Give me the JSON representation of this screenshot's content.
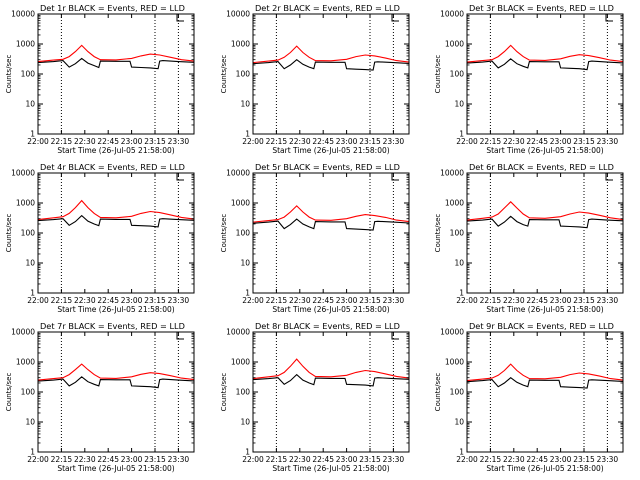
{
  "figure": {
    "background": "#ffffff",
    "events_color": "#000000",
    "lld_color": "#ff0000",
    "vline_times": [
      "22:15",
      "23:15",
      "23:30"
    ]
  },
  "chart_data": [
    {
      "type": "line",
      "title": "Det 1r BLACK = Events, RED = LLD",
      "xlabel": "",
      "ylabel": "Counts/sec",
      "x_ticks": [
        "22:00",
        "22:15",
        "22:30",
        "22:45",
        "23:00",
        "23:15",
        "23:30"
      ],
      "y_ticks": [
        "1",
        "10",
        "100",
        "1000",
        "10000"
      ],
      "yscale": "log",
      "ylim": [
        1,
        10000
      ],
      "xlim": [
        "22:00",
        "23:40"
      ],
      "series": [
        {
          "color": "#000000",
          "x": [
            "22:00",
            "22:10",
            "22:16",
            "22:20",
            "22:24",
            "22:28",
            "22:32",
            "22:36",
            "22:39",
            "22:40",
            "22:50",
            "22:59",
            "23:00",
            "23:06",
            "23:12",
            "23:17",
            "23:18",
            "23:20",
            "23:30",
            "23:40"
          ],
          "y": [
            240,
            260,
            280,
            170,
            220,
            330,
            230,
            190,
            165,
            270,
            265,
            265,
            170,
            165,
            160,
            150,
            270,
            280,
            260,
            245
          ]
        },
        {
          "color": "#ff0000",
          "x": [
            "22:00",
            "22:10",
            "22:16",
            "22:20",
            "22:24",
            "22:28",
            "22:32",
            "22:36",
            "22:40",
            "22:50",
            "23:00",
            "23:06",
            "23:12",
            "23:18",
            "23:25",
            "23:32",
            "23:40"
          ],
          "y": [
            260,
            290,
            310,
            380,
            560,
            900,
            560,
            380,
            300,
            295,
            330,
            400,
            460,
            430,
            360,
            300,
            270
          ]
        }
      ]
    },
    {
      "type": "line",
      "title": "Det 2r BLACK = Events, RED = LLD",
      "xlabel": "Start Time (26-Jul-05 21:58:00)",
      "ylabel": "Counts/sec",
      "x_ticks": [
        "22:00",
        "22:15",
        "22:30",
        "22:45",
        "23:00",
        "23:15",
        "23:30"
      ],
      "y_ticks": [
        "1",
        "10",
        "100",
        "1000",
        "10000"
      ],
      "yscale": "log",
      "ylim": [
        1,
        10000
      ],
      "xlim": [
        "22:00",
        "23:40"
      ],
      "series": [
        {
          "color": "#000000",
          "x": [
            "22:00",
            "22:10",
            "22:16",
            "22:20",
            "22:24",
            "22:28",
            "22:32",
            "22:36",
            "22:39",
            "22:40",
            "22:50",
            "22:59",
            "23:00",
            "23:06",
            "23:12",
            "23:17",
            "23:18",
            "23:20",
            "23:30",
            "23:40"
          ],
          "y": [
            220,
            240,
            260,
            150,
            200,
            300,
            210,
            170,
            150,
            250,
            245,
            245,
            150,
            145,
            140,
            135,
            250,
            255,
            240,
            225
          ]
        },
        {
          "color": "#ff0000",
          "x": [
            "22:00",
            "22:10",
            "22:16",
            "22:20",
            "22:24",
            "22:28",
            "22:32",
            "22:36",
            "22:40",
            "22:50",
            "23:00",
            "23:06",
            "23:12",
            "23:18",
            "23:25",
            "23:32",
            "23:40"
          ],
          "y": [
            240,
            270,
            290,
            360,
            520,
            850,
            520,
            360,
            280,
            275,
            310,
            380,
            430,
            400,
            340,
            280,
            250
          ]
        }
      ]
    },
    {
      "type": "line",
      "title": "Det 3r BLACK = Events, RED = LLD",
      "xlabel": "",
      "ylabel": "Counts/sec",
      "x_ticks": [
        "22:00",
        "22:15",
        "22:30",
        "22:45",
        "23:00",
        "23:15",
        "23:30"
      ],
      "y_ticks": [
        "1",
        "10",
        "100",
        "1000",
        "10000"
      ],
      "yscale": "log",
      "ylim": [
        1,
        10000
      ],
      "xlim": [
        "22:00",
        "23:40"
      ],
      "series": [
        {
          "color": "#000000",
          "x": [
            "22:00",
            "22:10",
            "22:16",
            "22:20",
            "22:24",
            "22:28",
            "22:32",
            "22:36",
            "22:39",
            "22:40",
            "22:50",
            "22:59",
            "23:00",
            "23:06",
            "23:12",
            "23:17",
            "23:18",
            "23:20",
            "23:30",
            "23:40"
          ],
          "y": [
            230,
            250,
            270,
            160,
            210,
            320,
            220,
            180,
            160,
            260,
            255,
            255,
            160,
            155,
            150,
            140,
            260,
            270,
            250,
            235
          ]
        },
        {
          "color": "#ff0000",
          "x": [
            "22:00",
            "22:10",
            "22:16",
            "22:20",
            "22:24",
            "22:28",
            "22:32",
            "22:36",
            "22:40",
            "22:50",
            "23:00",
            "23:06",
            "23:12",
            "23:18",
            "23:25",
            "23:32",
            "23:40"
          ],
          "y": [
            250,
            280,
            300,
            380,
            560,
            900,
            560,
            380,
            290,
            285,
            320,
            390,
            440,
            410,
            350,
            290,
            260
          ]
        }
      ]
    },
    {
      "type": "line",
      "title": "Det 4r BLACK = Events, RED = LLD",
      "xlabel": "",
      "ylabel": "Counts/sec",
      "x_ticks": [
        "22:00",
        "22:15",
        "22:30",
        "22:45",
        "23:00",
        "23:15",
        "23:30"
      ],
      "y_ticks": [
        "1",
        "10",
        "100",
        "1000",
        "10000"
      ],
      "yscale": "log",
      "ylim": [
        1,
        10000
      ],
      "xlim": [
        "22:00",
        "23:40"
      ],
      "series": [
        {
          "color": "#000000",
          "x": [
            "22:00",
            "22:10",
            "22:16",
            "22:20",
            "22:24",
            "22:28",
            "22:32",
            "22:36",
            "22:39",
            "22:40",
            "22:50",
            "22:59",
            "23:00",
            "23:06",
            "23:12",
            "23:17",
            "23:18",
            "23:20",
            "23:30",
            "23:40"
          ],
          "y": [
            260,
            280,
            300,
            180,
            240,
            380,
            250,
            200,
            175,
            290,
            285,
            285,
            180,
            175,
            170,
            160,
            290,
            300,
            280,
            265
          ]
        },
        {
          "color": "#ff0000",
          "x": [
            "22:00",
            "22:10",
            "22:16",
            "22:20",
            "22:24",
            "22:28",
            "22:32",
            "22:36",
            "22:40",
            "22:50",
            "23:00",
            "23:06",
            "23:12",
            "23:18",
            "23:25",
            "23:32",
            "23:40"
          ],
          "y": [
            280,
            320,
            350,
            450,
            700,
            1200,
            700,
            450,
            330,
            320,
            360,
            450,
            520,
            480,
            400,
            330,
            290
          ]
        }
      ]
    },
    {
      "type": "line",
      "title": "Det 5r BLACK = Events, RED = LLD",
      "xlabel": "Start Time (26-Jul-05 21:58:00)",
      "ylabel": "Counts/sec",
      "x_ticks": [
        "22:00",
        "22:15",
        "22:30",
        "22:45",
        "23:00",
        "23:15",
        "23:30"
      ],
      "y_ticks": [
        "1",
        "10",
        "100",
        "1000",
        "10000"
      ],
      "yscale": "log",
      "ylim": [
        1,
        10000
      ],
      "xlim": [
        "22:00",
        "23:40"
      ],
      "series": [
        {
          "color": "#000000",
          "x": [
            "22:00",
            "22:10",
            "22:16",
            "22:20",
            "22:24",
            "22:28",
            "22:32",
            "22:36",
            "22:39",
            "22:40",
            "22:50",
            "22:59",
            "23:00",
            "23:06",
            "23:12",
            "23:17",
            "23:18",
            "23:20",
            "23:30",
            "23:40"
          ],
          "y": [
            210,
            230,
            250,
            140,
            190,
            290,
            200,
            160,
            140,
            240,
            235,
            235,
            140,
            135,
            130,
            125,
            240,
            245,
            230,
            215
          ]
        },
        {
          "color": "#ff0000",
          "x": [
            "22:00",
            "22:10",
            "22:16",
            "22:20",
            "22:24",
            "22:28",
            "22:32",
            "22:36",
            "22:40",
            "22:50",
            "23:00",
            "23:06",
            "23:12",
            "23:18",
            "23:25",
            "23:32",
            "23:40"
          ],
          "y": [
            230,
            260,
            280,
            340,
            500,
            800,
            500,
            340,
            270,
            265,
            300,
            360,
            410,
            380,
            330,
            270,
            240
          ]
        }
      ]
    },
    {
      "type": "line",
      "title": "Det 6r BLACK = Events, RED = LLD",
      "xlabel": "",
      "ylabel": "Counts/sec",
      "x_ticks": [
        "22:00",
        "22:15",
        "22:30",
        "22:45",
        "23:00",
        "23:15",
        "23:30"
      ],
      "y_ticks": [
        "1",
        "10",
        "100",
        "1000",
        "10000"
      ],
      "yscale": "log",
      "ylim": [
        1,
        10000
      ],
      "xlim": [
        "22:00",
        "23:40"
      ],
      "series": [
        {
          "color": "#000000",
          "x": [
            "22:00",
            "22:10",
            "22:16",
            "22:20",
            "22:24",
            "22:28",
            "22:32",
            "22:36",
            "22:39",
            "22:40",
            "22:50",
            "22:59",
            "23:00",
            "23:06",
            "23:12",
            "23:17",
            "23:18",
            "23:20",
            "23:30",
            "23:40"
          ],
          "y": [
            250,
            270,
            290,
            170,
            230,
            360,
            240,
            190,
            170,
            280,
            275,
            275,
            170,
            165,
            160,
            150,
            280,
            290,
            270,
            255
          ]
        },
        {
          "color": "#ff0000",
          "x": [
            "22:00",
            "22:10",
            "22:16",
            "22:20",
            "22:24",
            "22:28",
            "22:32",
            "22:36",
            "22:40",
            "22:50",
            "23:00",
            "23:06",
            "23:12",
            "23:18",
            "23:25",
            "23:32",
            "23:40"
          ],
          "y": [
            270,
            310,
            340,
            430,
            680,
            1100,
            680,
            430,
            320,
            310,
            350,
            430,
            500,
            460,
            390,
            320,
            280
          ]
        }
      ]
    },
    {
      "type": "line",
      "title": "Det 7r BLACK = Events, RED = LLD",
      "xlabel": "",
      "ylabel": "Counts/sec",
      "x_ticks": [
        "22:00",
        "22:15",
        "22:30",
        "22:45",
        "23:00",
        "23:15",
        "23:30"
      ],
      "y_ticks": [
        "1",
        "10",
        "100",
        "1000",
        "10000"
      ],
      "yscale": "log",
      "ylim": [
        1,
        10000
      ],
      "xlim": [
        "22:00",
        "23:40"
      ],
      "series": [
        {
          "color": "#000000",
          "x": [
            "22:00",
            "22:10",
            "22:16",
            "22:20",
            "22:24",
            "22:28",
            "22:32",
            "22:36",
            "22:39",
            "22:40",
            "22:50",
            "22:59",
            "23:00",
            "23:06",
            "23:12",
            "23:17",
            "23:18",
            "23:20",
            "23:30",
            "23:40"
          ],
          "y": [
            230,
            250,
            270,
            160,
            210,
            320,
            220,
            180,
            160,
            260,
            255,
            255,
            160,
            155,
            150,
            140,
            260,
            270,
            250,
            235
          ]
        },
        {
          "color": "#ff0000",
          "x": [
            "22:00",
            "22:10",
            "22:16",
            "22:20",
            "22:24",
            "22:28",
            "22:32",
            "22:36",
            "22:40",
            "22:50",
            "23:00",
            "23:06",
            "23:12",
            "23:18",
            "23:25",
            "23:32",
            "23:40"
          ],
          "y": [
            250,
            280,
            300,
            380,
            560,
            850,
            560,
            380,
            290,
            285,
            320,
            390,
            440,
            410,
            350,
            290,
            260
          ]
        }
      ]
    },
    {
      "type": "line",
      "title": "Det 8r BLACK = Events, RED = LLD",
      "xlabel": "Start Time (26-Jul-05 21:58:00)",
      "ylabel": "Counts/sec",
      "x_ticks": [
        "22:00",
        "22:15",
        "22:30",
        "22:45",
        "23:00",
        "23:15",
        "23:30"
      ],
      "y_ticks": [
        "1",
        "10",
        "100",
        "1000",
        "10000"
      ],
      "yscale": "log",
      "ylim": [
        1,
        10000
      ],
      "xlim": [
        "22:00",
        "23:40"
      ],
      "series": [
        {
          "color": "#000000",
          "x": [
            "22:00",
            "22:10",
            "22:16",
            "22:20",
            "22:24",
            "22:28",
            "22:32",
            "22:36",
            "22:39",
            "22:40",
            "22:50",
            "22:59",
            "23:00",
            "23:06",
            "23:12",
            "23:17",
            "23:18",
            "23:20",
            "23:30",
            "23:40"
          ],
          "y": [
            260,
            280,
            300,
            180,
            240,
            380,
            250,
            200,
            175,
            290,
            285,
            285,
            180,
            175,
            170,
            160,
            290,
            300,
            280,
            265
          ]
        },
        {
          "color": "#ff0000",
          "x": [
            "22:00",
            "22:10",
            "22:16",
            "22:20",
            "22:24",
            "22:28",
            "22:32",
            "22:36",
            "22:40",
            "22:50",
            "23:00",
            "23:06",
            "23:12",
            "23:18",
            "23:25",
            "23:32",
            "23:40"
          ],
          "y": [
            280,
            320,
            350,
            450,
            720,
            1250,
            720,
            450,
            330,
            320,
            360,
            450,
            520,
            480,
            400,
            330,
            290
          ]
        }
      ]
    },
    {
      "type": "line",
      "title": "Det 9r BLACK = Events, RED = LLD",
      "xlabel": "",
      "ylabel": "Counts/sec",
      "x_ticks": [
        "22:00",
        "22:15",
        "22:30",
        "22:45",
        "23:00",
        "23:15",
        "23:30"
      ],
      "y_ticks": [
        "1",
        "10",
        "100",
        "1000",
        "10000"
      ],
      "yscale": "log",
      "ylim": [
        1,
        10000
      ],
      "xlim": [
        "22:00",
        "23:40"
      ],
      "series": [
        {
          "color": "#000000",
          "x": [
            "22:00",
            "22:10",
            "22:16",
            "22:20",
            "22:24",
            "22:28",
            "22:32",
            "22:36",
            "22:39",
            "22:40",
            "22:50",
            "22:59",
            "23:00",
            "23:06",
            "23:12",
            "23:17",
            "23:18",
            "23:20",
            "23:30",
            "23:40"
          ],
          "y": [
            220,
            240,
            260,
            150,
            200,
            300,
            210,
            170,
            150,
            250,
            245,
            245,
            150,
            145,
            140,
            135,
            250,
            255,
            240,
            225
          ]
        },
        {
          "color": "#ff0000",
          "x": [
            "22:00",
            "22:10",
            "22:16",
            "22:20",
            "22:24",
            "22:28",
            "22:32",
            "22:36",
            "22:40",
            "22:50",
            "23:00",
            "23:06",
            "23:12",
            "23:18",
            "23:25",
            "23:32",
            "23:40"
          ],
          "y": [
            240,
            270,
            290,
            360,
            520,
            850,
            520,
            360,
            280,
            275,
            310,
            380,
            430,
            400,
            340,
            280,
            250
          ]
        }
      ]
    }
  ]
}
